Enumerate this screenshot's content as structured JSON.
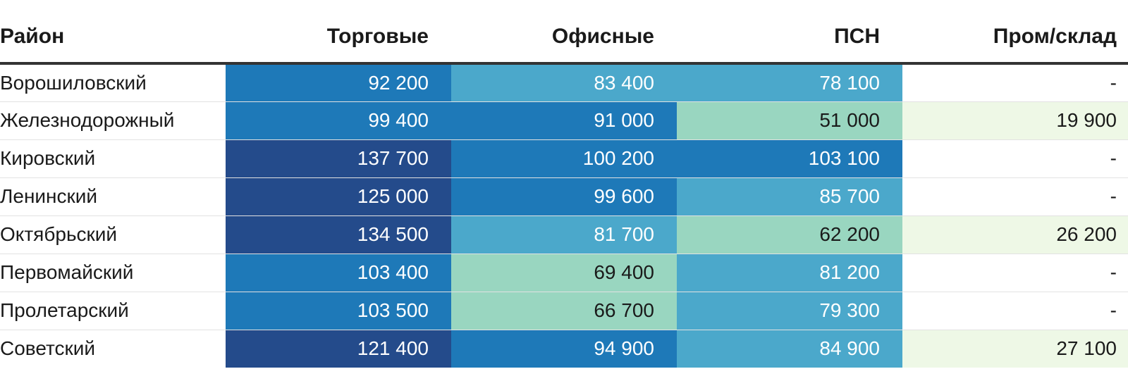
{
  "chart_data": {
    "type": "table",
    "columns": [
      "Район",
      "Торговые",
      "Офисные",
      "ПСН",
      "Пром/склад"
    ],
    "rows": [
      {
        "district": "Ворошиловский",
        "values": [
          "92 200",
          "83 400",
          "78 100",
          "-"
        ]
      },
      {
        "district": "Железнодорожный",
        "values": [
          "99 400",
          "91 000",
          "51 000",
          "19 900"
        ]
      },
      {
        "district": "Кировский",
        "values": [
          "137 700",
          "100 200",
          "103 100",
          "-"
        ]
      },
      {
        "district": "Ленинский",
        "values": [
          "125 000",
          "99 600",
          "85 700",
          "-"
        ]
      },
      {
        "district": "Октябрьский",
        "values": [
          "134 500",
          "81 700",
          "62 200",
          "26 200"
        ]
      },
      {
        "district": "Первомайский",
        "values": [
          "103 400",
          "69 400",
          "81 200",
          "-"
        ]
      },
      {
        "district": "Пролетарский",
        "values": [
          "103 500",
          "66 700",
          "79 300",
          "-"
        ]
      },
      {
        "district": "Советский",
        "values": [
          "121 400",
          "94 900",
          "84 900",
          "27 100"
        ]
      }
    ],
    "color_scale": {
      "breaks": [
        {
          "min": 0,
          "max": 40000,
          "bg": "#eef8e6",
          "text": "#1a1a1a"
        },
        {
          "min": 40000,
          "max": 70000,
          "bg": "#99d6c0",
          "text": "#1a1a1a"
        },
        {
          "min": 70000,
          "max": 90000,
          "bg": "#4ba8cb",
          "text": "#ffffff"
        },
        {
          "min": 90000,
          "max": 120000,
          "bg": "#1e79b8",
          "text": "#ffffff"
        },
        {
          "min": 120000,
          "max": 1000000,
          "bg": "#244b8b",
          "text": "#ffffff"
        }
      ],
      "empty": {
        "bg": "#ffffff",
        "text": "#1a1a1a"
      }
    }
  }
}
